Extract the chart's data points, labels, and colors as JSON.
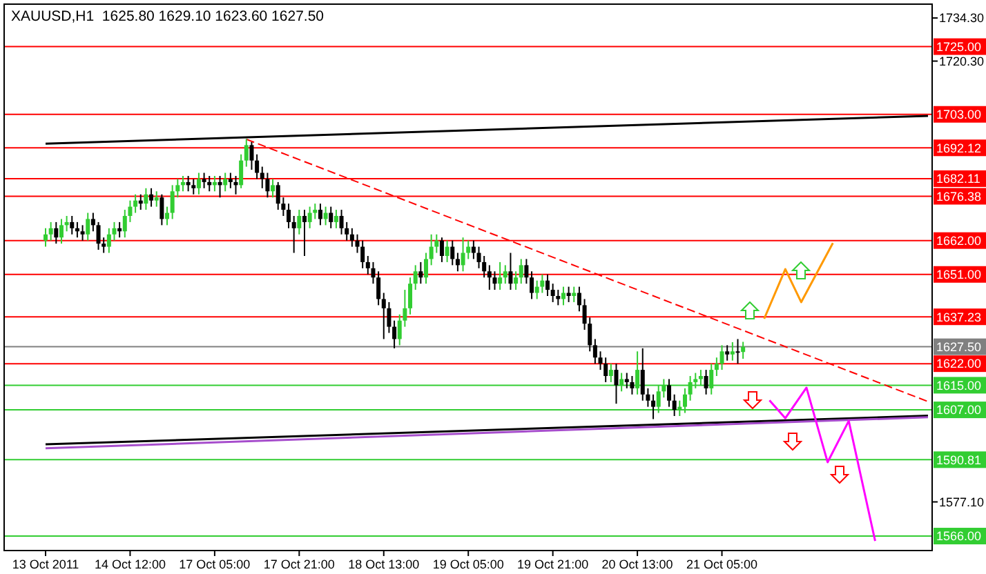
{
  "chart_data": {
    "type": "candlestick",
    "title": "XAUUSD,H1  1625.80 1629.10 1623.60 1627.50",
    "categories": [
      "13 Oct 2011",
      null,
      null,
      null,
      null,
      null,
      null,
      null,
      null,
      null,
      null,
      null,
      null,
      null,
      null,
      null,
      "14 Oct 12:00",
      null,
      null,
      null,
      null,
      null,
      null,
      null,
      null,
      null,
      null,
      null,
      null,
      null,
      null,
      null,
      "17 Oct 05:00",
      null,
      null,
      null,
      null,
      null,
      null,
      null,
      null,
      null,
      null,
      null,
      null,
      null,
      null,
      null,
      "17 Oct 21:00",
      null,
      null,
      null,
      null,
      null,
      null,
      null,
      null,
      null,
      null,
      null,
      null,
      null,
      null,
      null,
      "18 Oct 13:00",
      null,
      null,
      null,
      null,
      null,
      null,
      null,
      null,
      null,
      null,
      null,
      null,
      null,
      null,
      null,
      "19 Oct 05:00",
      null,
      null,
      null,
      null,
      null,
      null,
      null,
      null,
      null,
      null,
      null,
      null,
      null,
      null,
      null,
      "19 Oct 21:00",
      null,
      null,
      null,
      null,
      null,
      null,
      null,
      null,
      null,
      null,
      null,
      null,
      null,
      null,
      null,
      "20 Oct 13:00",
      null,
      null,
      null,
      null,
      null,
      null,
      null,
      null,
      null,
      null,
      null,
      null,
      null,
      null,
      null,
      "21 Oct 05:00",
      null,
      null,
      null,
      null,
      null,
      null,
      null,
      null,
      null,
      null,
      null,
      null,
      null,
      null,
      null,
      null,
      null,
      null,
      null,
      null,
      null,
      null,
      null,
      null,
      null,
      null,
      null,
      null,
      null,
      null,
      null,
      null,
      null,
      null,
      null,
      null,
      null,
      null,
      null
    ],
    "ylim": [
      1561.3,
      1738.8
    ],
    "yticks": [
      {
        "value": 1734.3,
        "label": "1734.30"
      },
      {
        "value": 1720.3,
        "label": "1720.30"
      },
      {
        "value": 1577.1,
        "label": "1577.10"
      }
    ],
    "grid": false,
    "series": [
      {
        "type": "candlestick",
        "colors": [
          "#32cd32",
          "#32cd32",
          "#000000",
          "#32cd32",
          "#32cd32",
          "#000000",
          "#000000",
          "#000000",
          "#32cd32",
          "#000000",
          "#000000",
          "#000000",
          "#32cd32",
          "#32cd32",
          "#000000",
          "#32cd32",
          "#32cd32",
          "#32cd32",
          "#000000",
          "#32cd32",
          "#000000",
          "#32cd32",
          "#000000",
          "#32cd32",
          "#32cd32",
          "#32cd32",
          "#32cd32",
          "#000000",
          "#000000",
          "#32cd32",
          "#000000",
          "#000000",
          "#32cd32",
          "#000000",
          "#32cd32",
          "#000000",
          "#000000",
          "#32cd32",
          "#32cd32",
          "#000000",
          "#000000",
          "#000000",
          "#000000",
          "#32cd32",
          "#000000",
          "#000000",
          "#000000",
          "#000000",
          "#32cd32",
          "#000000",
          "#32cd32",
          "#32cd32",
          "#000000",
          "#32cd32",
          "#000000",
          "#32cd32",
          "#000000",
          "#000000",
          "#000000",
          "#000000",
          "#000000",
          "#000000",
          "#000000",
          "#000000",
          "#000000",
          "#000000",
          "#000000",
          "#32cd32",
          "#32cd32",
          "#32cd32",
          "#32cd32",
          "#000000",
          "#32cd32",
          "#32cd32",
          "#32cd32",
          "#000000",
          "#32cd32",
          "#000000",
          "#000000",
          "#32cd32",
          "#32cd32",
          "#000000",
          "#000000",
          "#000000",
          "#000000",
          "#000000",
          "#32cd32",
          "#32cd32",
          "#000000",
          "#32cd32",
          "#32cd32",
          "#000000",
          "#000000",
          "#32cd32",
          "#32cd32",
          "#000000",
          "#000000",
          "#000000",
          "#32cd32",
          "#000000",
          "#32cd32",
          "#000000",
          "#000000",
          "#000000",
          "#000000",
          "#000000",
          "#000000",
          "#32cd32",
          "#000000",
          "#32cd32",
          "#000000",
          "#000000",
          "#32cd32",
          "#000000",
          "#000000",
          "#000000",
          "#32cd32",
          "#32cd32",
          "#000000",
          "#000000",
          "#32cd32",
          "#32cd32",
          "#32cd32",
          "#32cd32",
          "#32cd32",
          "#000000",
          "#32cd32",
          "#32cd32",
          "#32cd32",
          "#000000",
          "#32cd32",
          "#000000",
          "#32cd32",
          null,
          null,
          null,
          null,
          null,
          null,
          null,
          null,
          null,
          null,
          null,
          null,
          null,
          null,
          null,
          null,
          null,
          null,
          null,
          null,
          null,
          null,
          null,
          null,
          null,
          null,
          null,
          null,
          null,
          null,
          null,
          null,
          null,
          null,
          null
        ],
        "ohlc": [
          [
            1662,
            1666,
            1660,
            1664
          ],
          [
            1664,
            1668,
            1662,
            1666
          ],
          [
            1666,
            1668,
            1661,
            1663
          ],
          [
            1663,
            1669,
            1661,
            1667
          ],
          [
            1667,
            1670,
            1665,
            1668
          ],
          [
            1668,
            1670,
            1664,
            1666
          ],
          [
            1666,
            1668,
            1663,
            1665
          ],
          [
            1665,
            1667,
            1662,
            1664
          ],
          [
            1664,
            1671,
            1662,
            1669
          ],
          [
            1669,
            1671,
            1665,
            1667
          ],
          [
            1667,
            1668,
            1659,
            1661
          ],
          [
            1661,
            1663,
            1658,
            1660
          ],
          [
            1660,
            1666,
            1658,
            1664
          ],
          [
            1664,
            1668,
            1662,
            1666
          ],
          [
            1666,
            1668,
            1663,
            1665
          ],
          [
            1665,
            1672,
            1663,
            1670
          ],
          [
            1670,
            1675,
            1668,
            1673
          ],
          [
            1673,
            1677,
            1671,
            1675
          ],
          [
            1675,
            1677,
            1672,
            1674
          ],
          [
            1674,
            1679,
            1672,
            1677
          ],
          [
            1677,
            1679,
            1673,
            1675
          ],
          [
            1675,
            1678,
            1673,
            1676
          ],
          [
            1676,
            1677,
            1667,
            1669
          ],
          [
            1669,
            1673,
            1667,
            1671
          ],
          [
            1671,
            1680,
            1669,
            1678
          ],
          [
            1678,
            1682,
            1676,
            1680
          ],
          [
            1680,
            1683,
            1678,
            1681
          ],
          [
            1681,
            1683,
            1678,
            1680
          ],
          [
            1680,
            1682,
            1677,
            1679
          ],
          [
            1679,
            1684,
            1677,
            1682
          ],
          [
            1682,
            1684,
            1679,
            1681
          ],
          [
            1681,
            1683,
            1678,
            1680
          ],
          [
            1680,
            1683,
            1678,
            1681
          ],
          [
            1681,
            1683,
            1676,
            1680
          ],
          [
            1680,
            1684,
            1678,
            1682
          ],
          [
            1682,
            1684,
            1679,
            1681
          ],
          [
            1681,
            1683,
            1677,
            1680
          ],
          [
            1680,
            1690,
            1679,
            1688
          ],
          [
            1688,
            1695,
            1686,
            1693
          ],
          [
            1693,
            1694,
            1685,
            1688
          ],
          [
            1688,
            1690,
            1682,
            1684
          ],
          [
            1684,
            1686,
            1679,
            1682
          ],
          [
            1682,
            1684,
            1676,
            1678
          ],
          [
            1678,
            1682,
            1676,
            1680
          ],
          [
            1680,
            1681,
            1672,
            1674
          ],
          [
            1674,
            1676,
            1670,
            1672
          ],
          [
            1672,
            1674,
            1666,
            1668
          ],
          [
            1668,
            1670,
            1658,
            1666
          ],
          [
            1666,
            1672,
            1664,
            1670
          ],
          [
            1670,
            1672,
            1657,
            1668
          ],
          [
            1668,
            1673,
            1666,
            1671
          ],
          [
            1671,
            1674,
            1669,
            1672
          ],
          [
            1672,
            1674,
            1667,
            1669
          ],
          [
            1669,
            1673,
            1667,
            1671
          ],
          [
            1671,
            1673,
            1666,
            1668
          ],
          [
            1668,
            1672,
            1666,
            1670
          ],
          [
            1670,
            1672,
            1664,
            1666
          ],
          [
            1666,
            1668,
            1662,
            1664
          ],
          [
            1664,
            1666,
            1660,
            1662
          ],
          [
            1662,
            1664,
            1658,
            1660
          ],
          [
            1660,
            1662,
            1653,
            1655
          ],
          [
            1655,
            1657,
            1651,
            1653
          ],
          [
            1653,
            1655,
            1648,
            1650
          ],
          [
            1650,
            1652,
            1641,
            1643
          ],
          [
            1643,
            1645,
            1630,
            1640
          ],
          [
            1640,
            1642,
            1632,
            1634
          ],
          [
            1634,
            1636,
            1627,
            1630
          ],
          [
            1630,
            1638,
            1628,
            1636
          ],
          [
            1636,
            1646,
            1634,
            1640
          ],
          [
            1640,
            1650,
            1638,
            1648
          ],
          [
            1648,
            1654,
            1646,
            1652
          ],
          [
            1652,
            1655,
            1648,
            1650
          ],
          [
            1650,
            1658,
            1648,
            1656
          ],
          [
            1656,
            1664,
            1654,
            1660
          ],
          [
            1660,
            1664,
            1658,
            1662
          ],
          [
            1662,
            1663,
            1655,
            1657
          ],
          [
            1657,
            1662,
            1655,
            1660
          ],
          [
            1660,
            1662,
            1654,
            1656
          ],
          [
            1656,
            1658,
            1652,
            1654
          ],
          [
            1654,
            1663,
            1652,
            1658
          ],
          [
            1658,
            1662,
            1656,
            1660
          ],
          [
            1660,
            1662,
            1656,
            1658
          ],
          [
            1658,
            1660,
            1653,
            1655
          ],
          [
            1655,
            1657,
            1650,
            1652
          ],
          [
            1652,
            1654,
            1646,
            1650
          ],
          [
            1650,
            1652,
            1646,
            1648
          ],
          [
            1648,
            1655,
            1646,
            1650
          ],
          [
            1650,
            1654,
            1648,
            1652
          ],
          [
            1652,
            1658,
            1646,
            1648
          ],
          [
            1648,
            1652,
            1646,
            1650
          ],
          [
            1650,
            1656,
            1648,
            1654
          ],
          [
            1654,
            1656,
            1648,
            1650
          ],
          [
            1650,
            1652,
            1643,
            1645
          ],
          [
            1645,
            1649,
            1643,
            1647
          ],
          [
            1647,
            1651,
            1645,
            1649
          ],
          [
            1649,
            1651,
            1644,
            1646
          ],
          [
            1646,
            1648,
            1642,
            1644
          ],
          [
            1644,
            1646,
            1641,
            1643
          ],
          [
            1643,
            1647,
            1641,
            1645
          ],
          [
            1645,
            1647,
            1642,
            1644
          ],
          [
            1644,
            1647,
            1642,
            1645
          ],
          [
            1645,
            1647,
            1639,
            1641
          ],
          [
            1641,
            1643,
            1633,
            1635
          ],
          [
            1635,
            1637,
            1626,
            1628
          ],
          [
            1628,
            1630,
            1622,
            1624
          ],
          [
            1624,
            1626,
            1620,
            1622
          ],
          [
            1622,
            1624,
            1616,
            1618
          ],
          [
            1618,
            1622,
            1616,
            1620
          ],
          [
            1620,
            1622,
            1609,
            1615
          ],
          [
            1615,
            1619,
            1613,
            1617
          ],
          [
            1617,
            1619,
            1614,
            1616
          ],
          [
            1616,
            1618,
            1612,
            1614
          ],
          [
            1614,
            1626,
            1612,
            1620
          ],
          [
            1620,
            1627,
            1610,
            1612
          ],
          [
            1612,
            1614,
            1608,
            1610
          ],
          [
            1610,
            1612,
            1604,
            1608
          ],
          [
            1608,
            1615,
            1606,
            1613
          ],
          [
            1613,
            1617,
            1611,
            1615
          ],
          [
            1615,
            1617,
            1608,
            1610
          ],
          [
            1610,
            1612,
            1605,
            1607
          ],
          [
            1607,
            1610,
            1605,
            1608
          ],
          [
            1608,
            1614,
            1606,
            1612
          ],
          [
            1612,
            1618,
            1610,
            1616
          ],
          [
            1616,
            1619,
            1614,
            1617
          ],
          [
            1617,
            1620,
            1615,
            1618
          ],
          [
            1618,
            1620,
            1612,
            1614
          ],
          [
            1614,
            1622,
            1612,
            1620
          ],
          [
            1620,
            1624,
            1618,
            1622
          ],
          [
            1622,
            1628,
            1620,
            1626
          ],
          [
            1626,
            1628,
            1623,
            1625
          ],
          [
            1625,
            1629,
            1623,
            1626
          ],
          [
            1626,
            1630,
            1622,
            1625.8
          ],
          [
            1625.8,
            1629.1,
            1623.6,
            1627.5
          ],
          null,
          null,
          null,
          null,
          null,
          null,
          null,
          null,
          null,
          null,
          null,
          null,
          null,
          null,
          null,
          null,
          null,
          null,
          null,
          null,
          null,
          null,
          null,
          null,
          null,
          null,
          null,
          null,
          null,
          null,
          null,
          null,
          null,
          null,
          null
        ]
      },
      {
        "type": "line",
        "color": "#000000",
        "values": [
          1693.5,
          null,
          null,
          null,
          null,
          null,
          null,
          null,
          null,
          null,
          null,
          null,
          null,
          null,
          null,
          null,
          null,
          null,
          null,
          null,
          null,
          null,
          null,
          null,
          null,
          null,
          null,
          null,
          null,
          null,
          null,
          null,
          null,
          null,
          null,
          null,
          null,
          null,
          null,
          null,
          null,
          null,
          null,
          null,
          null,
          null,
          null,
          null,
          null,
          null,
          null,
          null,
          null,
          null,
          null,
          null,
          null,
          null,
          null,
          null,
          null,
          null,
          null,
          null,
          null,
          null,
          null,
          null,
          null,
          null,
          null,
          null,
          null,
          null,
          null,
          null,
          null,
          null,
          null,
          null,
          null,
          null,
          null,
          null,
          null,
          null,
          null,
          null,
          null,
          null,
          null,
          null,
          null,
          null,
          null,
          null,
          null,
          null,
          null,
          null,
          null,
          null,
          null,
          null,
          null,
          null,
          null,
          null,
          null,
          null,
          null,
          null,
          null,
          null,
          null,
          null,
          null,
          null,
          null,
          null,
          null,
          null,
          null,
          null,
          null,
          null,
          null,
          null,
          null,
          null,
          null,
          null,
          null,
          null,
          null,
          null,
          null,
          null,
          null,
          null,
          null,
          null,
          null,
          null,
          null,
          null,
          null,
          null,
          null,
          null,
          null,
          null,
          null,
          null,
          null,
          null,
          null,
          null,
          null,
          null,
          null,
          null,
          null,
          null,
          null,
          null,
          null,
          1702.5
        ]
      },
      {
        "type": "line",
        "color": "#000000",
        "values": [
          1595.8,
          null,
          null,
          null,
          null,
          null,
          null,
          null,
          null,
          null,
          null,
          null,
          null,
          null,
          null,
          null,
          null,
          null,
          null,
          null,
          null,
          null,
          null,
          null,
          null,
          null,
          null,
          null,
          null,
          null,
          null,
          null,
          null,
          null,
          null,
          null,
          null,
          null,
          null,
          null,
          null,
          null,
          null,
          null,
          null,
          null,
          null,
          null,
          null,
          null,
          null,
          null,
          null,
          null,
          null,
          null,
          null,
          null,
          null,
          null,
          null,
          null,
          null,
          null,
          null,
          null,
          null,
          null,
          null,
          null,
          null,
          null,
          null,
          null,
          null,
          null,
          null,
          null,
          null,
          null,
          null,
          null,
          null,
          null,
          null,
          null,
          null,
          null,
          null,
          null,
          null,
          null,
          null,
          null,
          null,
          null,
          null,
          null,
          null,
          null,
          null,
          null,
          null,
          null,
          null,
          null,
          null,
          null,
          null,
          null,
          null,
          null,
          null,
          null,
          null,
          null,
          null,
          null,
          null,
          null,
          null,
          null,
          null,
          null,
          null,
          null,
          null,
          null,
          null,
          null,
          null,
          null,
          null,
          null,
          null,
          null,
          null,
          null,
          null,
          null,
          null,
          null,
          null,
          null,
          null,
          null,
          null,
          null,
          null,
          null,
          null,
          null,
          null,
          null,
          null,
          null,
          null,
          null,
          null,
          null,
          null,
          null,
          null,
          null,
          null,
          null,
          null,
          1605.1
        ]
      },
      {
        "type": "line",
        "color": "#a64dcc",
        "values": [
          1594.5,
          null,
          null,
          null,
          null,
          null,
          null,
          null,
          null,
          null,
          null,
          null,
          null,
          null,
          null,
          null,
          null,
          null,
          null,
          null,
          null,
          null,
          null,
          null,
          null,
          null,
          null,
          null,
          null,
          null,
          null,
          null,
          null,
          null,
          null,
          null,
          null,
          null,
          null,
          null,
          null,
          null,
          null,
          null,
          null,
          null,
          null,
          null,
          null,
          null,
          null,
          null,
          null,
          null,
          null,
          null,
          null,
          null,
          null,
          null,
          null,
          null,
          null,
          null,
          null,
          null,
          null,
          null,
          null,
          null,
          null,
          null,
          null,
          null,
          null,
          null,
          null,
          null,
          null,
          null,
          null,
          null,
          null,
          null,
          null,
          null,
          null,
          null,
          null,
          null,
          null,
          null,
          null,
          null,
          null,
          null,
          null,
          null,
          null,
          null,
          null,
          null,
          null,
          null,
          null,
          null,
          null,
          null,
          null,
          null,
          null,
          null,
          null,
          null,
          null,
          null,
          null,
          null,
          null,
          null,
          null,
          null,
          null,
          null,
          null,
          null,
          null,
          null,
          null,
          null,
          null,
          null,
          null,
          null,
          null,
          null,
          null,
          null,
          null,
          null,
          null,
          null,
          null,
          null,
          null,
          null,
          null,
          null,
          null,
          null,
          null,
          null,
          null,
          null,
          null,
          null,
          null,
          null,
          null,
          null,
          null,
          null,
          null,
          null,
          null,
          null,
          null,
          1604.6
        ]
      },
      {
        "type": "line",
        "color": "#ff0000",
        "line_style": "dashed",
        "values": [
          null,
          null,
          null,
          null,
          null,
          null,
          null,
          null,
          null,
          null,
          null,
          null,
          null,
          null,
          null,
          null,
          null,
          null,
          null,
          null,
          null,
          null,
          null,
          null,
          null,
          null,
          null,
          null,
          null,
          null,
          null,
          null,
          null,
          null,
          null,
          null,
          null,
          null,
          1694.9,
          null,
          null,
          null,
          null,
          null,
          null,
          null,
          null,
          null,
          null,
          null,
          null,
          null,
          null,
          null,
          null,
          null,
          null,
          null,
          null,
          null,
          null,
          null,
          null,
          null,
          null,
          null,
          null,
          null,
          null,
          null,
          null,
          null,
          null,
          null,
          null,
          null,
          null,
          null,
          null,
          null,
          null,
          null,
          null,
          null,
          null,
          null,
          null,
          null,
          null,
          null,
          null,
          null,
          null,
          null,
          null,
          null,
          null,
          null,
          null,
          null,
          null,
          null,
          null,
          null,
          null,
          null,
          null,
          null,
          null,
          null,
          null,
          null,
          null,
          null,
          null,
          null,
          null,
          null,
          null,
          null,
          null,
          null,
          null,
          null,
          null,
          null,
          null,
          null,
          null,
          null,
          null,
          null,
          null,
          null,
          null,
          null,
          null,
          null,
          null,
          null,
          null,
          null,
          null,
          null,
          null,
          null,
          null,
          null,
          null,
          null,
          null,
          null,
          null,
          null,
          null,
          null,
          null,
          null,
          null,
          null,
          null,
          null,
          null,
          null,
          null,
          null,
          null,
          1609.7
        ]
      },
      {
        "type": "line",
        "color": "#ff9900",
        "values": [
          null,
          null,
          null,
          null,
          null,
          null,
          null,
          null,
          null,
          null,
          null,
          null,
          null,
          null,
          null,
          null,
          null,
          null,
          null,
          null,
          null,
          null,
          null,
          null,
          null,
          null,
          null,
          null,
          null,
          null,
          null,
          null,
          null,
          null,
          null,
          null,
          null,
          null,
          null,
          null,
          null,
          null,
          null,
          null,
          null,
          null,
          null,
          null,
          null,
          null,
          null,
          null,
          null,
          null,
          null,
          null,
          null,
          null,
          null,
          null,
          null,
          null,
          null,
          null,
          null,
          null,
          null,
          null,
          null,
          null,
          null,
          null,
          null,
          null,
          null,
          null,
          null,
          null,
          null,
          null,
          null,
          null,
          null,
          null,
          null,
          null,
          null,
          null,
          null,
          null,
          null,
          null,
          null,
          null,
          null,
          null,
          null,
          null,
          null,
          null,
          null,
          null,
          null,
          null,
          null,
          null,
          null,
          null,
          null,
          null,
          null,
          null,
          null,
          null,
          null,
          null,
          null,
          null,
          null,
          null,
          null,
          null,
          null,
          null,
          null,
          null,
          null,
          null,
          null,
          null,
          null,
          null,
          null,
          null,
          null,
          null,
          1636.6,
          null,
          null,
          null,
          1652.7,
          null,
          null,
          1642.0,
          null,
          null,
          null,
          null,
          null,
          1661.2,
          null,
          null,
          null,
          null,
          null,
          null,
          null,
          null,
          null,
          null,
          null,
          null,
          null,
          null,
          null,
          null,
          null,
          null
        ]
      },
      {
        "type": "line",
        "color": "#ff00ff",
        "values": [
          null,
          null,
          null,
          null,
          null,
          null,
          null,
          null,
          null,
          null,
          null,
          null,
          null,
          null,
          null,
          null,
          null,
          null,
          null,
          null,
          null,
          null,
          null,
          null,
          null,
          null,
          null,
          null,
          null,
          null,
          null,
          null,
          null,
          null,
          null,
          null,
          null,
          null,
          null,
          null,
          null,
          null,
          null,
          null,
          null,
          null,
          null,
          null,
          null,
          null,
          null,
          null,
          null,
          null,
          null,
          null,
          null,
          null,
          null,
          null,
          null,
          null,
          null,
          null,
          null,
          null,
          null,
          null,
          null,
          null,
          null,
          null,
          null,
          null,
          null,
          null,
          null,
          null,
          null,
          null,
          null,
          null,
          null,
          null,
          null,
          null,
          null,
          null,
          null,
          null,
          null,
          null,
          null,
          null,
          null,
          null,
          null,
          null,
          null,
          null,
          null,
          null,
          null,
          null,
          null,
          null,
          null,
          null,
          null,
          null,
          null,
          null,
          null,
          null,
          null,
          null,
          null,
          null,
          null,
          null,
          null,
          null,
          null,
          null,
          null,
          null,
          null,
          null,
          null,
          null,
          null,
          null,
          null,
          null,
          null,
          null,
          null,
          1610.1,
          null,
          null,
          1604.3,
          null,
          null,
          null,
          1614.2,
          null,
          null,
          null,
          1590.0,
          null,
          null,
          null,
          1603.4,
          null,
          null,
          null,
          null,
          1564.4,
          null,
          null,
          null,
          null,
          null,
          null,
          null,
          null,
          null,
          null
        ]
      }
    ],
    "ref_lines": [
      {
        "axis": "y",
        "value": 1725,
        "label": "1725.00",
        "color": "#ff0000"
      },
      {
        "axis": "y",
        "value": 1703,
        "label": "1703.00",
        "color": "#ff0000"
      },
      {
        "axis": "y",
        "value": 1692.12,
        "label": "1692.12",
        "color": "#ff0000"
      },
      {
        "axis": "y",
        "value": 1682.11,
        "label": "1682.11",
        "color": "#ff0000"
      },
      {
        "axis": "y",
        "value": 1676.38,
        "label": "1676.38",
        "color": "#ff0000"
      },
      {
        "axis": "y",
        "value": 1662,
        "label": "1662.00",
        "color": "#ff0000"
      },
      {
        "axis": "y",
        "value": 1651,
        "label": "1651.00",
        "color": "#ff0000"
      },
      {
        "axis": "y",
        "value": 1637.23,
        "label": "1637.23",
        "color": "#ff0000"
      },
      {
        "axis": "y",
        "value": 1627.5,
        "label": "1627.50",
        "color": "#808080"
      },
      {
        "axis": "y",
        "value": 1622,
        "label": "1622.00",
        "color": "#ff0000"
      },
      {
        "axis": "y",
        "value": 1615,
        "label": "1615.00",
        "color": "#32cd32"
      },
      {
        "axis": "y",
        "value": 1607,
        "label": "1607.00",
        "color": "#32cd32"
      },
      {
        "axis": "y",
        "value": 1590.81,
        "label": "1590.81",
        "color": "#32cd32"
      },
      {
        "axis": "y",
        "value": 1566,
        "label": "1566.00",
        "color": "#32cd32"
      }
    ]
  }
}
